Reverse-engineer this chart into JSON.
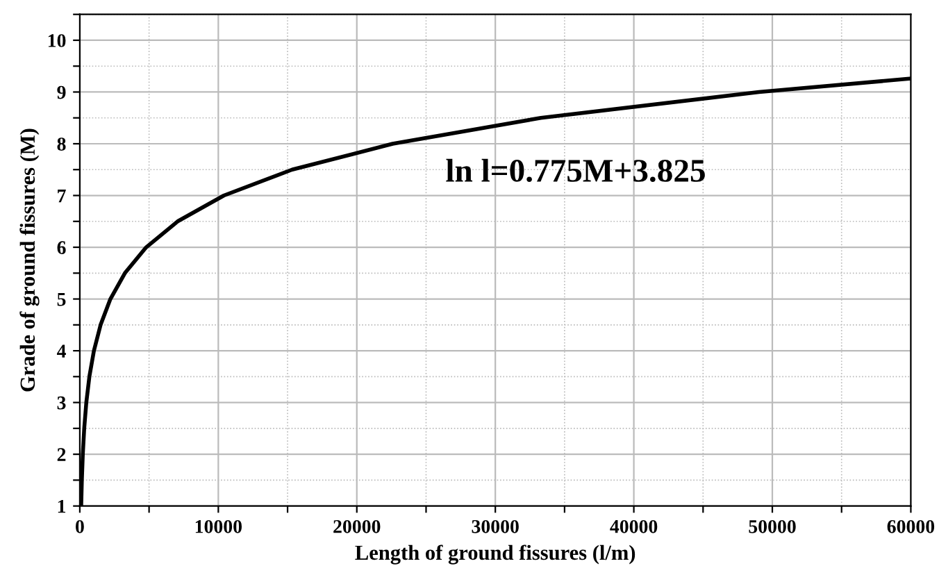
{
  "chart_data": {
    "type": "line",
    "xlabel": "Length of ground fissures (l/m)",
    "ylabel": "Grade of ground fissures (M)",
    "annotations": [
      "ln l=0.775M+3.825"
    ],
    "x": [
      100,
      147,
      216,
      318,
      469,
      691,
      1018,
      1500,
      2208,
      3254,
      4794,
      7063,
      10405,
      15332,
      22590,
      33287,
      49037,
      60000
    ],
    "series": [
      {
        "color": "#000000",
        "values": [
          1,
          1.5,
          2,
          2.5,
          3,
          3.5,
          4,
          4.5,
          5,
          5.5,
          6,
          6.5,
          7,
          7.5,
          8,
          8.5,
          9,
          9.26
        ]
      }
    ],
    "xlim": [
      0,
      60000
    ],
    "ylim": [
      1,
      10.5
    ],
    "xticks": [
      0,
      {
        "value": 5000,
        "label": null
      },
      10000,
      {
        "value": 15000,
        "label": null
      },
      20000,
      {
        "value": 25000,
        "label": null
      },
      30000,
      {
        "value": 35000,
        "label": null
      },
      40000,
      {
        "value": 45000,
        "label": null
      },
      50000,
      {
        "value": 55000,
        "label": null
      },
      60000
    ],
    "yticks": [
      1,
      {
        "value": 1.5,
        "label": null
      },
      2,
      {
        "value": 2.5,
        "label": null
      },
      3,
      {
        "value": 3.5,
        "label": null
      },
      4,
      {
        "value": 4.5,
        "label": null
      },
      5,
      {
        "value": 5.5,
        "label": null
      },
      6,
      {
        "value": 6.5,
        "label": null
      },
      7,
      {
        "value": 7.5,
        "label": null
      },
      8,
      {
        "value": 8.5,
        "label": null
      },
      9,
      {
        "value": 9.5,
        "label": null
      },
      10,
      {
        "value": 10.5,
        "label": null
      }
    ],
    "grid": true,
    "marker": "none",
    "line_style": "solid"
  }
}
